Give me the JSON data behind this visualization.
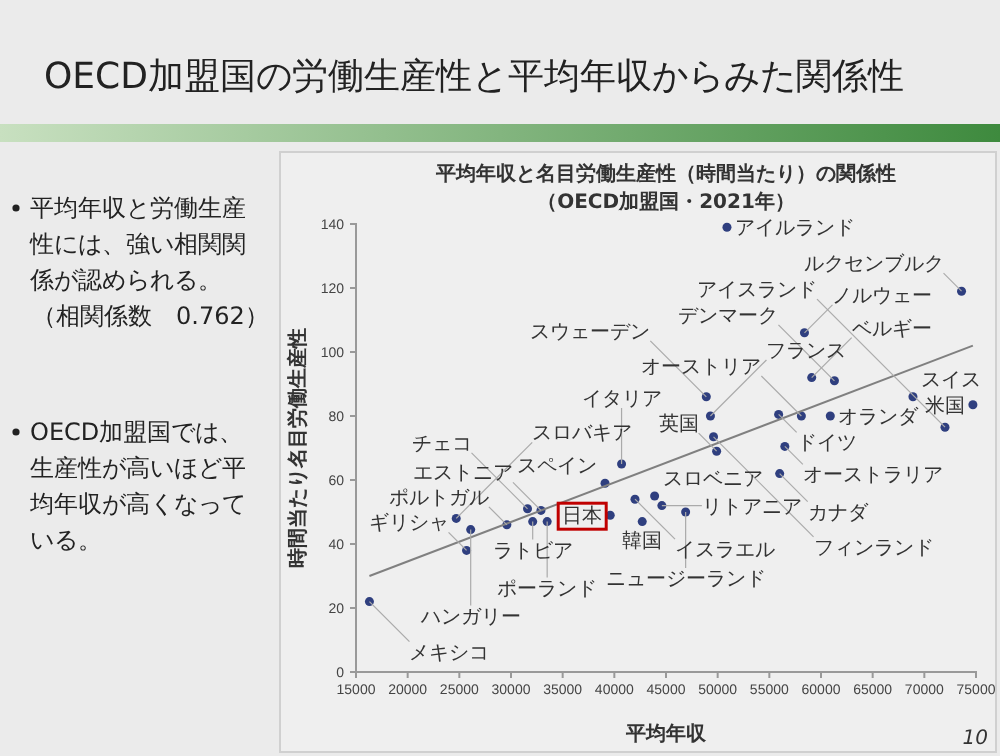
{
  "chart_data": {
    "type": "scatter",
    "title": "平均年収と名目労働生産性（時間当たり）の関係性",
    "subtitle": "（OECD加盟国・2021年）",
    "xlabel": "平均年収",
    "ylabel": "時間当たり名目労働生産性",
    "xlim": [
      15000,
      75000
    ],
    "xticks": [
      15000,
      20000,
      25000,
      30000,
      35000,
      40000,
      45000,
      50000,
      55000,
      60000,
      65000,
      70000,
      75000
    ],
    "ylim": [
      0,
      140
    ],
    "yticks": [
      0,
      20,
      40,
      60,
      80,
      100,
      120,
      140
    ],
    "grid": false,
    "series": [
      {
        "color": "#2f3f7f",
        "marker": "circle",
        "x": [
          16300,
          25700,
          26100,
          24700,
          29600,
          31600,
          32900,
          32100,
          33500,
          40700,
          39100,
          42700,
          42000,
          43900,
          44600,
          46900,
          50900,
          73600,
          58400,
          59100,
          61300,
          48900,
          49300,
          55900,
          58100,
          60900,
          49600,
          49900,
          56500,
          56000,
          68900,
          74700,
          72000
        ],
        "values": [
          22,
          38,
          44.5,
          48,
          46,
          51,
          50.5,
          47,
          47,
          65,
          59,
          47,
          54,
          55,
          52,
          50,
          139,
          119,
          106,
          92,
          91,
          86,
          80,
          80.5,
          80,
          80,
          73.5,
          69,
          70.5,
          62,
          86,
          83.5,
          76.5
        ]
      },
      {
        "color": "#2f3f7f",
        "marker": "circle",
        "x": [
          39600
        ],
        "values": [
          49
        ]
      },
      {
        "type": "line",
        "color": "#808080",
        "x": [
          16300,
          74700
        ],
        "values": [
          30,
          102
        ]
      }
    ],
    "annotations": [
      "OECD加盟国の労働生産性と平均年収からみた関係性",
      "平均年収と労働生産性には、強い相関関係が認められる。",
      "（相関係数　0.762）",
      "OECD加盟国では、生産性が高いほど平均年収が高くなっている。",
      "10",
      {
        "text": "日本",
        "x": 39600,
        "y": 49
      },
      {
        "text": "スペイン",
        "x": 39100,
        "y": 59
      },
      {
        "text": "韓国",
        "x": 42700,
        "y": 47
      },
      {
        "text": "イスラエル",
        "x": 42000,
        "y": 54
      },
      {
        "text": "スロベニア",
        "x": 43900,
        "y": 55
      },
      {
        "text": "リトアニア",
        "x": 44600,
        "y": 52
      },
      {
        "text": "ニュージーランド",
        "x": 46900,
        "y": 50
      },
      {
        "text": "ラトビア",
        "x": 32100,
        "y": 47
      },
      {
        "text": "エストニア",
        "x": 32900,
        "y": 50.5
      },
      {
        "text": "ポーランド",
        "x": 33500,
        "y": 47
      },
      {
        "text": "チェコ",
        "x": 31600,
        "y": 51
      },
      {
        "text": "ポルトガル",
        "x": 29600,
        "y": 46
      },
      {
        "text": "スロバキア",
        "x": 24700,
        "y": 48
      },
      {
        "text": "ハンガリー",
        "x": 26100,
        "y": 44.5
      },
      {
        "text": "ギリシャ",
        "x": 25700,
        "y": 38
      },
      {
        "text": "メキシコ",
        "x": 16300,
        "y": 22
      },
      {
        "text": "イタリア",
        "x": 40700,
        "y": 65
      },
      {
        "text": "ドイツ",
        "x": 55900,
        "y": 80.5
      },
      {
        "text": "オーストリア",
        "x": 58100,
        "y": 80
      },
      {
        "text": "オランダ",
        "x": 60900,
        "y": 80
      },
      {
        "text": "フランス",
        "x": 49300,
        "y": 80
      },
      {
        "text": "フィンランド",
        "x": 49600,
        "y": 73.5
      },
      {
        "text": "英国",
        "x": 49900,
        "y": 69
      },
      {
        "text": "オーストラリア",
        "x": 56500,
        "y": 70.5
      },
      {
        "text": "カナダ",
        "x": 56000,
        "y": 62
      },
      {
        "text": "スウェーデン",
        "x": 48900,
        "y": 86
      },
      {
        "text": "ベルギー",
        "x": 59100,
        "y": 92
      },
      {
        "text": "デンマーク",
        "x": 61300,
        "y": 91
      },
      {
        "text": "スイス",
        "x": 68900,
        "y": 86
      },
      {
        "text": "米国",
        "x": 74700,
        "y": 83.5
      },
      {
        "text": "アイスランド",
        "x": 72000,
        "y": 76.5
      },
      {
        "text": "ノルウェー",
        "x": 58400,
        "y": 106
      },
      {
        "text": "ルクセンブルク",
        "x": 73600,
        "y": 119
      },
      {
        "text": "アイルランド",
        "x": 50900,
        "y": 139
      }
    ]
  }
}
